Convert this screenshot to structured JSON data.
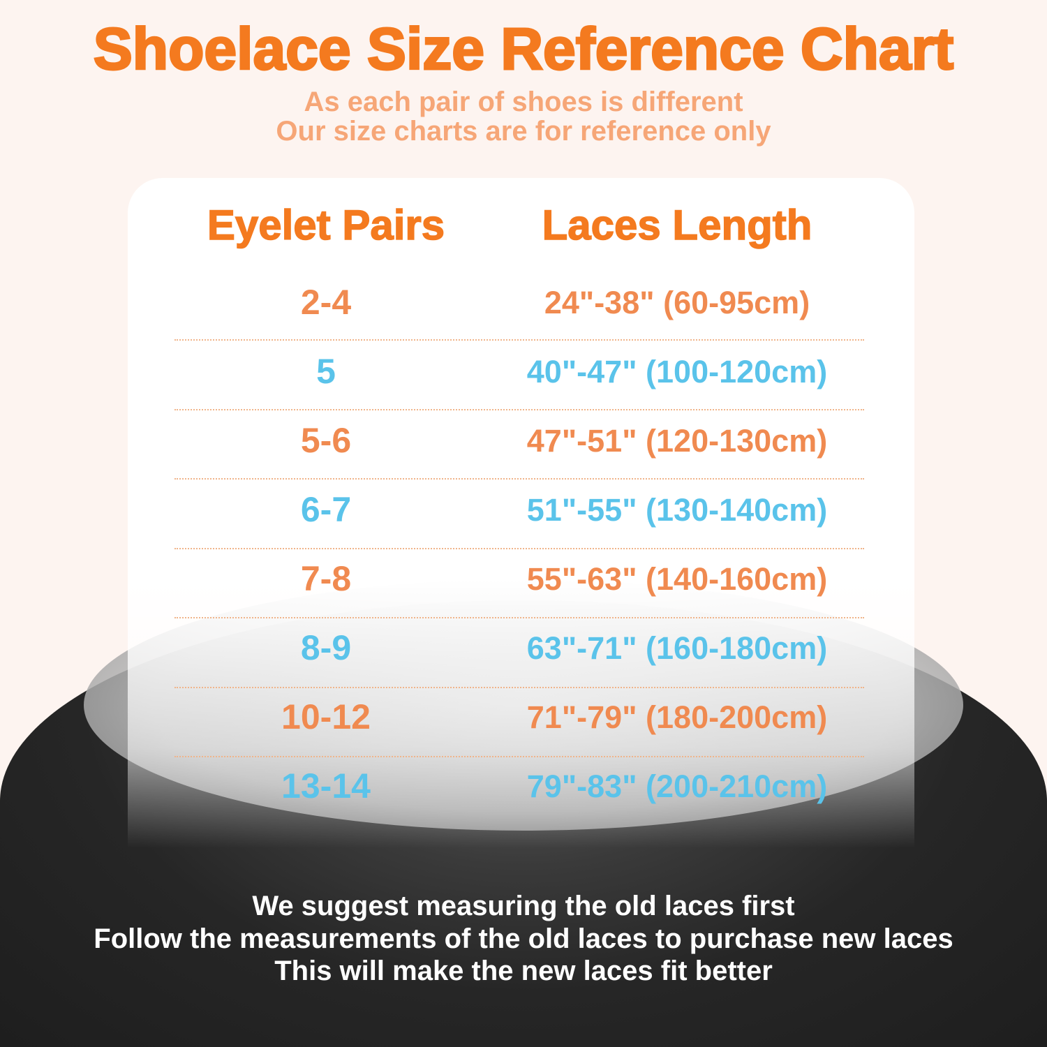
{
  "title": "Shoelace Size Reference Chart",
  "subtitle": [
    "As each pair of shoes is different",
    "Our size charts are for reference only"
  ],
  "headers": {
    "eyelet": "Eyelet Pairs",
    "length": "Laces Length"
  },
  "colors": {
    "title": "#f47a1f",
    "orange": "#f08a50",
    "blue": "#5ac3ea"
  },
  "rows": [
    {
      "eyelets": "2-4",
      "length": "24\"-38\" (60-95cm)",
      "color": "orange"
    },
    {
      "eyelets": "5",
      "length": "40\"-47\" (100-120cm)",
      "color": "blue"
    },
    {
      "eyelets": "5-6",
      "length": "47\"-51\" (120-130cm)",
      "color": "orange"
    },
    {
      "eyelets": "6-7",
      "length": "51\"-55\" (130-140cm)",
      "color": "blue"
    },
    {
      "eyelets": "7-8",
      "length": "55\"-63\" (140-160cm)",
      "color": "orange"
    },
    {
      "eyelets": "8-9",
      "length": "63\"-71\" (160-180cm)",
      "color": "blue"
    },
    {
      "eyelets": "10-12",
      "length": "71\"-79\" (180-200cm)",
      "color": "orange"
    },
    {
      "eyelets": "13-14",
      "length": "79\"-83\" (200-210cm)",
      "color": "blue"
    }
  ],
  "footer": [
    "We suggest measuring the old laces first",
    "Follow the measurements of the old laces to purchase new laces",
    "This will make the new laces fit better"
  ]
}
